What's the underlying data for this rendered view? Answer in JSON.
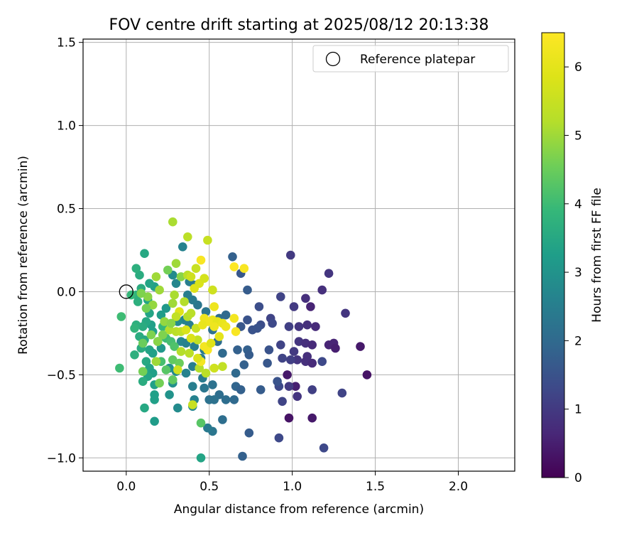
{
  "chart_data": {
    "type": "scatter",
    "title": "FOV centre drift starting at 2025/08/12 20:13:38",
    "xlabel": "Angular distance from reference (arcmin)",
    "ylabel": "Rotation from reference (arcmin)",
    "xlim": [
      -0.26,
      2.34
    ],
    "ylim": [
      -1.08,
      1.52
    ],
    "xticks": [
      0.0,
      0.5,
      1.0,
      1.5,
      2.0
    ],
    "xtick_labels": [
      "0.0",
      "0.5",
      "1.0",
      "1.5",
      "2.0"
    ],
    "yticks": [
      -1.0,
      -0.5,
      0.0,
      0.5,
      1.0,
      1.5
    ],
    "ytick_labels": [
      "−1.0",
      "−0.5",
      "0.0",
      "0.5",
      "1.0",
      "1.5"
    ],
    "grid": true,
    "legend": {
      "position": "top-right",
      "entries": [
        "Reference platepar"
      ]
    },
    "reference_point": {
      "x": 0.0,
      "y": 0.0
    },
    "colorbar": {
      "label": "Hours from first FF file",
      "range": [
        0,
        6.5
      ],
      "ticks": [
        0,
        1,
        2,
        3,
        4,
        5,
        6
      ],
      "tick_labels": [
        "0",
        "1",
        "2",
        "3",
        "4",
        "5",
        "6"
      ],
      "colormap": "viridis"
    },
    "points": [
      {
        "x": 0.99,
        "y": 0.22,
        "h": 1.0
      },
      {
        "x": 1.22,
        "y": 0.11,
        "h": 0.9
      },
      {
        "x": 1.18,
        "y": 0.01,
        "h": 0.8
      },
      {
        "x": 1.32,
        "y": -0.13,
        "h": 0.9
      },
      {
        "x": 0.93,
        "y": -0.03,
        "h": 1.2
      },
      {
        "x": 1.08,
        "y": -0.04,
        "h": 0.8
      },
      {
        "x": 1.01,
        "y": -0.09,
        "h": 1.0
      },
      {
        "x": 1.11,
        "y": -0.09,
        "h": 0.6
      },
      {
        "x": 0.98,
        "y": -0.21,
        "h": 1.1
      },
      {
        "x": 1.04,
        "y": -0.21,
        "h": 0.9
      },
      {
        "x": 1.09,
        "y": -0.2,
        "h": 0.8
      },
      {
        "x": 1.14,
        "y": -0.21,
        "h": 0.7
      },
      {
        "x": 1.04,
        "y": -0.3,
        "h": 0.9
      },
      {
        "x": 1.08,
        "y": -0.31,
        "h": 0.8
      },
      {
        "x": 1.12,
        "y": -0.32,
        "h": 0.7
      },
      {
        "x": 1.22,
        "y": -0.32,
        "h": 0.6
      },
      {
        "x": 1.25,
        "y": -0.31,
        "h": 0.6
      },
      {
        "x": 1.26,
        "y": -0.34,
        "h": 0.5
      },
      {
        "x": 1.41,
        "y": -0.33,
        "h": 0.4
      },
      {
        "x": 1.45,
        "y": -0.5,
        "h": 0.3
      },
      {
        "x": 0.93,
        "y": -0.32,
        "h": 1.2
      },
      {
        "x": 1.01,
        "y": -0.36,
        "h": 1.0
      },
      {
        "x": 1.03,
        "y": -0.41,
        "h": 0.9
      },
      {
        "x": 1.08,
        "y": -0.42,
        "h": 0.8
      },
      {
        "x": 1.12,
        "y": -0.43,
        "h": 0.7
      },
      {
        "x": 1.09,
        "y": -0.39,
        "h": 0.8
      },
      {
        "x": 0.94,
        "y": -0.4,
        "h": 1.2
      },
      {
        "x": 0.97,
        "y": -0.5,
        "h": 0.4
      },
      {
        "x": 0.99,
        "y": -0.41,
        "h": 1.1
      },
      {
        "x": 1.18,
        "y": -0.42,
        "h": 1.3
      },
      {
        "x": 1.02,
        "y": -0.57,
        "h": 0.5
      },
      {
        "x": 0.98,
        "y": -0.57,
        "h": 1.0
      },
      {
        "x": 0.92,
        "y": -0.57,
        "h": 1.3
      },
      {
        "x": 1.12,
        "y": -0.59,
        "h": 1.1
      },
      {
        "x": 1.3,
        "y": -0.61,
        "h": 1.2
      },
      {
        "x": 1.03,
        "y": -0.63,
        "h": 0.9
      },
      {
        "x": 0.94,
        "y": -0.66,
        "h": 1.2
      },
      {
        "x": 0.98,
        "y": -0.76,
        "h": 0.3
      },
      {
        "x": 1.12,
        "y": -0.76,
        "h": 0.4
      },
      {
        "x": 0.92,
        "y": -0.88,
        "h": 1.3
      },
      {
        "x": 1.19,
        "y": -0.94,
        "h": 1.3
      },
      {
        "x": 0.91,
        "y": -0.54,
        "h": 1.5
      },
      {
        "x": 0.87,
        "y": -0.16,
        "h": 1.2
      },
      {
        "x": 0.88,
        "y": -0.19,
        "h": 1.3
      },
      {
        "x": 0.8,
        "y": -0.09,
        "h": 1.4
      },
      {
        "x": 0.81,
        "y": -0.2,
        "h": 1.4
      },
      {
        "x": 0.79,
        "y": -0.22,
        "h": 1.5
      },
      {
        "x": 0.73,
        "y": -0.17,
        "h": 1.5
      },
      {
        "x": 0.69,
        "y": -0.21,
        "h": 1.6
      },
      {
        "x": 0.76,
        "y": -0.23,
        "h": 1.5
      },
      {
        "x": 0.73,
        "y": 0.01,
        "h": 1.7
      },
      {
        "x": 0.69,
        "y": 0.11,
        "h": 1.6
      },
      {
        "x": 0.64,
        "y": 0.21,
        "h": 1.8
      },
      {
        "x": 0.86,
        "y": -0.35,
        "h": 1.5
      },
      {
        "x": 0.85,
        "y": -0.43,
        "h": 1.6
      },
      {
        "x": 0.73,
        "y": -0.35,
        "h": 1.8
      },
      {
        "x": 0.74,
        "y": -0.38,
        "h": 1.7
      },
      {
        "x": 0.67,
        "y": -0.35,
        "h": 1.8
      },
      {
        "x": 0.71,
        "y": -0.44,
        "h": 1.8
      },
      {
        "x": 0.66,
        "y": -0.49,
        "h": 2.0
      },
      {
        "x": 0.66,
        "y": -0.57,
        "h": 1.9
      },
      {
        "x": 0.69,
        "y": -0.59,
        "h": 1.8
      },
      {
        "x": 0.81,
        "y": -0.59,
        "h": 1.7
      },
      {
        "x": 0.65,
        "y": -0.65,
        "h": 2.0
      },
      {
        "x": 0.6,
        "y": -0.65,
        "h": 2.1
      },
      {
        "x": 0.56,
        "y": -0.62,
        "h": 2.1
      },
      {
        "x": 0.53,
        "y": -0.65,
        "h": 2.2
      },
      {
        "x": 0.5,
        "y": -0.65,
        "h": 2.2
      },
      {
        "x": 0.58,
        "y": -0.77,
        "h": 2.1
      },
      {
        "x": 0.74,
        "y": -0.85,
        "h": 1.7
      },
      {
        "x": 0.7,
        "y": -0.99,
        "h": 1.8
      },
      {
        "x": 0.52,
        "y": -0.84,
        "h": 2.3
      },
      {
        "x": 0.49,
        "y": -0.82,
        "h": 2.4
      },
      {
        "x": 0.47,
        "y": -0.58,
        "h": 2.3
      },
      {
        "x": 0.52,
        "y": -0.56,
        "h": 2.2
      },
      {
        "x": 0.46,
        "y": -0.52,
        "h": 2.4
      },
      {
        "x": 0.4,
        "y": -0.57,
        "h": 2.5
      },
      {
        "x": 0.41,
        "y": -0.65,
        "h": 2.6
      },
      {
        "x": 0.4,
        "y": -0.69,
        "h": 2.7
      },
      {
        "x": 0.58,
        "y": -0.37,
        "h": 2.0
      },
      {
        "x": 0.55,
        "y": -0.3,
        "h": 2.1
      },
      {
        "x": 0.52,
        "y": -0.23,
        "h": 2.2
      },
      {
        "x": 0.56,
        "y": -0.16,
        "h": 2.1
      },
      {
        "x": 0.6,
        "y": -0.14,
        "h": 2.0
      },
      {
        "x": 0.48,
        "y": -0.12,
        "h": 2.3
      },
      {
        "x": 0.43,
        "y": -0.08,
        "h": 2.3
      },
      {
        "x": 0.4,
        "y": -0.05,
        "h": 2.4
      },
      {
        "x": 0.37,
        "y": -0.02,
        "h": 2.5
      },
      {
        "x": 0.34,
        "y": 0.27,
        "h": 2.6
      },
      {
        "x": 0.3,
        "y": 0.05,
        "h": 2.7
      },
      {
        "x": 0.28,
        "y": 0.1,
        "h": 2.8
      },
      {
        "x": 0.38,
        "y": 0.06,
        "h": 2.5
      },
      {
        "x": 0.41,
        "y": 0.04,
        "h": 2.4
      },
      {
        "x": 0.35,
        "y": -0.17,
        "h": 2.6
      },
      {
        "x": 0.38,
        "y": -0.2,
        "h": 2.5
      },
      {
        "x": 0.31,
        "y": -0.18,
        "h": 2.8
      },
      {
        "x": 0.33,
        "y": -0.3,
        "h": 2.7
      },
      {
        "x": 0.36,
        "y": -0.31,
        "h": 2.6
      },
      {
        "x": 0.41,
        "y": -0.33,
        "h": 2.5
      },
      {
        "x": 0.47,
        "y": -0.35,
        "h": 2.4
      },
      {
        "x": 0.45,
        "y": -0.4,
        "h": 2.4
      },
      {
        "x": 0.4,
        "y": -0.45,
        "h": 2.5
      },
      {
        "x": 0.36,
        "y": -0.49,
        "h": 2.6
      },
      {
        "x": 0.3,
        "y": -0.48,
        "h": 2.8
      },
      {
        "x": 0.26,
        "y": -0.46,
        "h": 2.9
      },
      {
        "x": 0.28,
        "y": -0.55,
        "h": 2.9
      },
      {
        "x": 0.26,
        "y": -0.62,
        "h": 3.0
      },
      {
        "x": 0.31,
        "y": -0.7,
        "h": 2.8
      },
      {
        "x": 0.21,
        "y": -0.34,
        "h": 3.1
      },
      {
        "x": 0.19,
        "y": -0.3,
        "h": 3.2
      },
      {
        "x": 0.16,
        "y": -0.24,
        "h": 3.3
      },
      {
        "x": 0.15,
        "y": -0.2,
        "h": 3.3
      },
      {
        "x": 0.21,
        "y": -0.14,
        "h": 3.2
      },
      {
        "x": 0.24,
        "y": -0.1,
        "h": 3.1
      },
      {
        "x": 0.14,
        "y": -0.13,
        "h": 3.4
      },
      {
        "x": 0.13,
        "y": -0.05,
        "h": 3.4
      },
      {
        "x": 0.17,
        "y": 0.03,
        "h": 3.3
      },
      {
        "x": 0.14,
        "y": 0.05,
        "h": 3.4
      },
      {
        "x": 0.08,
        "y": 0.1,
        "h": 3.6
      },
      {
        "x": 0.06,
        "y": 0.14,
        "h": 3.7
      },
      {
        "x": 0.11,
        "y": 0.23,
        "h": 3.5
      },
      {
        "x": 0.09,
        "y": 0.02,
        "h": 3.6
      },
      {
        "x": 0.06,
        "y": -0.02,
        "h": 3.7
      },
      {
        "x": 0.07,
        "y": -0.06,
        "h": 3.7
      },
      {
        "x": 0.12,
        "y": -0.18,
        "h": 3.5
      },
      {
        "x": 0.1,
        "y": -0.21,
        "h": 3.6
      },
      {
        "x": 0.06,
        "y": -0.2,
        "h": 3.7
      },
      {
        "x": 0.08,
        "y": -0.27,
        "h": 3.6
      },
      {
        "x": 0.11,
        "y": -0.29,
        "h": 3.5
      },
      {
        "x": 0.14,
        "y": -0.35,
        "h": 3.4
      },
      {
        "x": 0.16,
        "y": -0.37,
        "h": 3.3
      },
      {
        "x": 0.12,
        "y": -0.42,
        "h": 3.5
      },
      {
        "x": 0.14,
        "y": -0.46,
        "h": 3.4
      },
      {
        "x": 0.16,
        "y": -0.49,
        "h": 3.3
      },
      {
        "x": 0.13,
        "y": -0.51,
        "h": 3.4
      },
      {
        "x": 0.1,
        "y": -0.54,
        "h": 3.6
      },
      {
        "x": 0.17,
        "y": -0.56,
        "h": 3.3
      },
      {
        "x": 0.17,
        "y": -0.62,
        "h": 3.3
      },
      {
        "x": 0.17,
        "y": -0.65,
        "h": 3.3
      },
      {
        "x": 0.11,
        "y": -0.7,
        "h": 3.5
      },
      {
        "x": 0.17,
        "y": -0.78,
        "h": 3.2
      },
      {
        "x": 0.45,
        "y": -1.0,
        "h": 3.4
      },
      {
        "x": 0.45,
        "y": -0.79,
        "h": 4.3
      },
      {
        "x": 0.4,
        "y": -0.68,
        "h": 5.5
      },
      {
        "x": 0.05,
        "y": -0.38,
        "h": 3.7
      },
      {
        "x": -0.04,
        "y": -0.46,
        "h": 4.0
      },
      {
        "x": -0.03,
        "y": -0.15,
        "h": 4.0
      },
      {
        "x": 0.05,
        "y": -0.22,
        "h": 3.8
      },
      {
        "x": 0.03,
        "y": -0.02,
        "h": 3.9
      },
      {
        "x": 0.09,
        "y": -0.34,
        "h": 3.6
      },
      {
        "x": 0.22,
        "y": -0.21,
        "h": 3.9
      },
      {
        "x": 0.24,
        "y": -0.28,
        "h": 4.0
      },
      {
        "x": 0.27,
        "y": -0.3,
        "h": 4.1
      },
      {
        "x": 0.29,
        "y": -0.33,
        "h": 4.2
      },
      {
        "x": 0.21,
        "y": -0.42,
        "h": 4.1
      },
      {
        "x": 0.24,
        "y": -0.47,
        "h": 4.3
      },
      {
        "x": 0.28,
        "y": -0.41,
        "h": 4.4
      },
      {
        "x": 0.32,
        "y": -0.43,
        "h": 4.5
      },
      {
        "x": 0.2,
        "y": -0.55,
        "h": 4.6
      },
      {
        "x": 0.28,
        "y": 0.42,
        "h": 5.1
      },
      {
        "x": 0.37,
        "y": 0.33,
        "h": 5.3
      },
      {
        "x": 0.49,
        "y": 0.31,
        "h": 5.5
      },
      {
        "x": 0.25,
        "y": 0.13,
        "h": 4.6
      },
      {
        "x": 0.3,
        "y": 0.17,
        "h": 5.0
      },
      {
        "x": 0.33,
        "y": 0.09,
        "h": 4.8
      },
      {
        "x": 0.37,
        "y": 0.1,
        "h": 5.3
      },
      {
        "x": 0.39,
        "y": 0.09,
        "h": 5.6
      },
      {
        "x": 0.42,
        "y": 0.14,
        "h": 5.5
      },
      {
        "x": 0.18,
        "y": 0.09,
        "h": 5.0
      },
      {
        "x": 0.2,
        "y": 0.01,
        "h": 5.0
      },
      {
        "x": 0.16,
        "y": -0.08,
        "h": 4.9
      },
      {
        "x": 0.13,
        "y": -0.03,
        "h": 4.8
      },
      {
        "x": 0.09,
        "y": -0.01,
        "h": 4.7
      },
      {
        "x": 0.28,
        "y": -0.07,
        "h": 5.0
      },
      {
        "x": 0.29,
        "y": -0.02,
        "h": 5.1
      },
      {
        "x": 0.35,
        "y": -0.06,
        "h": 5.2
      },
      {
        "x": 0.26,
        "y": -0.23,
        "h": 5.2
      },
      {
        "x": 0.3,
        "y": -0.24,
        "h": 5.3
      },
      {
        "x": 0.33,
        "y": -0.24,
        "h": 5.4
      },
      {
        "x": 0.37,
        "y": -0.15,
        "h": 5.2
      },
      {
        "x": 0.39,
        "y": -0.13,
        "h": 5.3
      },
      {
        "x": 0.33,
        "y": -0.36,
        "h": 5.2
      },
      {
        "x": 0.38,
        "y": -0.37,
        "h": 5.3
      },
      {
        "x": 0.43,
        "y": -0.29,
        "h": 5.4
      },
      {
        "x": 0.44,
        "y": -0.46,
        "h": 5.2
      },
      {
        "x": 0.48,
        "y": -0.49,
        "h": 5.3
      },
      {
        "x": 0.53,
        "y": -0.46,
        "h": 5.6
      },
      {
        "x": 0.58,
        "y": -0.45,
        "h": 5.4
      },
      {
        "x": 0.45,
        "y": -0.42,
        "h": 6.3
      },
      {
        "x": 0.49,
        "y": -0.35,
        "h": 6.4
      },
      {
        "x": 0.47,
        "y": -0.33,
        "h": 6.3
      },
      {
        "x": 0.41,
        "y": 0.02,
        "h": 5.9
      },
      {
        "x": 0.44,
        "y": 0.05,
        "h": 5.8
      },
      {
        "x": 0.47,
        "y": 0.08,
        "h": 5.7
      },
      {
        "x": 0.52,
        "y": 0.01,
        "h": 5.6
      },
      {
        "x": 0.45,
        "y": 0.19,
        "h": 6.4
      },
      {
        "x": 0.65,
        "y": 0.15,
        "h": 6.5
      },
      {
        "x": 0.71,
        "y": 0.14,
        "h": 6.4
      },
      {
        "x": 0.53,
        "y": -0.09,
        "h": 6.2
      },
      {
        "x": 0.47,
        "y": -0.16,
        "h": 6.2
      },
      {
        "x": 0.52,
        "y": -0.17,
        "h": 6.1
      },
      {
        "x": 0.55,
        "y": -0.18,
        "h": 6.0
      },
      {
        "x": 0.58,
        "y": -0.19,
        "h": 6.1
      },
      {
        "x": 0.6,
        "y": -0.21,
        "h": 6.2
      },
      {
        "x": 0.65,
        "y": -0.16,
        "h": 6.3
      },
      {
        "x": 0.66,
        "y": -0.24,
        "h": 6.4
      },
      {
        "x": 0.53,
        "y": -0.21,
        "h": 6.2
      },
      {
        "x": 0.56,
        "y": -0.27,
        "h": 6.0
      },
      {
        "x": 0.51,
        "y": -0.31,
        "h": 5.9
      },
      {
        "x": 0.43,
        "y": -0.4,
        "h": 5.8
      },
      {
        "x": 0.42,
        "y": -0.22,
        "h": 5.5
      },
      {
        "x": 0.36,
        "y": -0.23,
        "h": 5.8
      },
      {
        "x": 0.39,
        "y": -0.28,
        "h": 5.8
      },
      {
        "x": 0.32,
        "y": -0.12,
        "h": 5.9
      },
      {
        "x": 0.3,
        "y": -0.15,
        "h": 5.4
      },
      {
        "x": 0.23,
        "y": -0.18,
        "h": 4.9
      },
      {
        "x": 0.27,
        "y": -0.19,
        "h": 4.8
      },
      {
        "x": 0.22,
        "y": -0.26,
        "h": 4.7
      },
      {
        "x": 0.19,
        "y": -0.3,
        "h": 4.8
      },
      {
        "x": 0.15,
        "y": -0.26,
        "h": 4.7
      },
      {
        "x": 0.12,
        "y": -0.1,
        "h": 4.6
      },
      {
        "x": 0.1,
        "y": -0.48,
        "h": 4.6
      },
      {
        "x": 0.18,
        "y": -0.42,
        "h": 5.0
      },
      {
        "x": 0.1,
        "y": -0.31,
        "h": 4.5
      },
      {
        "x": 0.28,
        "y": -0.53,
        "h": 4.4
      },
      {
        "x": 0.31,
        "y": -0.47,
        "h": 5.6
      },
      {
        "x": 0.49,
        "y": -0.18,
        "h": 6.2
      },
      {
        "x": 0.46,
        "y": -0.2,
        "h": 6.1
      }
    ]
  }
}
